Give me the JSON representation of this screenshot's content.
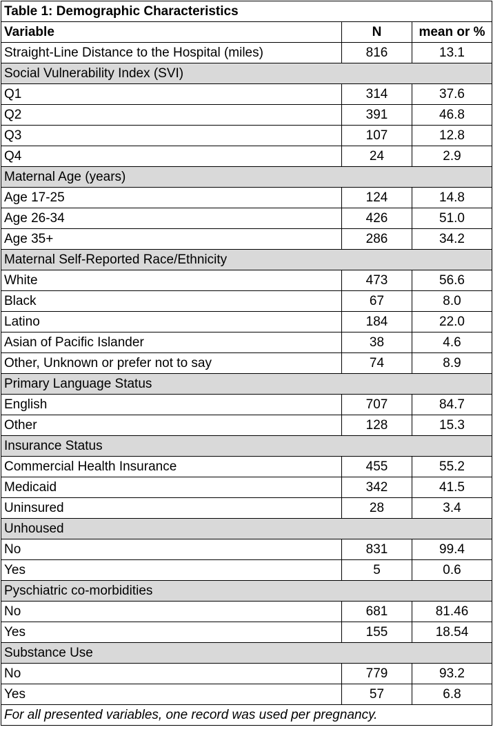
{
  "title": "Table 1: Demographic Characteristics",
  "columns": [
    "Variable",
    "N",
    "mean or %"
  ],
  "rows": [
    {
      "type": "data",
      "label": "Straight-Line Distance to the Hospital (miles)",
      "n": "816",
      "value": "13.1",
      "indent": false
    },
    {
      "type": "section",
      "label": "Social Vulnerability Index (SVI)"
    },
    {
      "type": "data",
      "label": "Q1",
      "n": "314",
      "value": "37.6",
      "indent": true
    },
    {
      "type": "data",
      "label": "Q2",
      "n": "391",
      "value": "46.8",
      "indent": true
    },
    {
      "type": "data",
      "label": "Q3",
      "n": "107",
      "value": "12.8",
      "indent": true
    },
    {
      "type": "data",
      "label": "Q4",
      "n": "24",
      "value": "2.9",
      "indent": true
    },
    {
      "type": "section",
      "label": "Maternal Age (years)"
    },
    {
      "type": "data",
      "label": "Age 17-25",
      "n": "124",
      "value": "14.8",
      "indent": true
    },
    {
      "type": "data",
      "label": "Age 26-34",
      "n": "426",
      "value": "51.0",
      "indent": true
    },
    {
      "type": "data",
      "label": "Age 35+",
      "n": "286",
      "value": "34.2",
      "indent": true
    },
    {
      "type": "section",
      "label": "Maternal Self-Reported Race/Ethnicity"
    },
    {
      "type": "data",
      "label": "White",
      "n": "473",
      "value": "56.6",
      "indent": true
    },
    {
      "type": "data",
      "label": "Black",
      "n": "67",
      "value": "8.0",
      "indent": true
    },
    {
      "type": "data",
      "label": "Latino",
      "n": "184",
      "value": "22.0",
      "indent": true
    },
    {
      "type": "data",
      "label": "Asian of Pacific Islander",
      "n": "38",
      "value": "4.6",
      "indent": true
    },
    {
      "type": "data",
      "label": "Other, Unknown or prefer not to say",
      "n": "74",
      "value": "8.9",
      "indent": true
    },
    {
      "type": "section",
      "label": "Primary Language Status"
    },
    {
      "type": "data",
      "label": "English",
      "n": "707",
      "value": "84.7",
      "indent": true
    },
    {
      "type": "data",
      "label": "Other",
      "n": "128",
      "value": "15.3",
      "indent": true
    },
    {
      "type": "section",
      "label": "Insurance Status"
    },
    {
      "type": "data",
      "label": "Commercial Health Insurance",
      "n": "455",
      "value": "55.2",
      "indent": true
    },
    {
      "type": "data",
      "label": "Medicaid",
      "n": "342",
      "value": "41.5",
      "indent": true
    },
    {
      "type": "data",
      "label": "Uninsured",
      "n": "28",
      "value": "3.4",
      "indent": true
    },
    {
      "type": "section",
      "label": "Unhoused",
      "bold_bottom": true
    },
    {
      "type": "data",
      "label": "No",
      "n": "831",
      "value": "99.4",
      "indent": true
    },
    {
      "type": "data",
      "label": "Yes",
      "n": "5",
      "value": "0.6",
      "indent": true
    },
    {
      "type": "section",
      "label": "Pyschiatric co-morbidities"
    },
    {
      "type": "data",
      "label": "No",
      "n": "681",
      "value": "81.46",
      "indent": true
    },
    {
      "type": "data",
      "label": "Yes",
      "n": "155",
      "value": "18.54",
      "indent": true
    },
    {
      "type": "section",
      "label": "Substance Use"
    },
    {
      "type": "data",
      "label": "No",
      "n": "779",
      "value": "93.2",
      "indent": true
    },
    {
      "type": "data",
      "label": "Yes",
      "n": "57",
      "value": "6.8",
      "indent": true
    }
  ],
  "footnote": "For all presented variables, one record was used per pregnancy."
}
